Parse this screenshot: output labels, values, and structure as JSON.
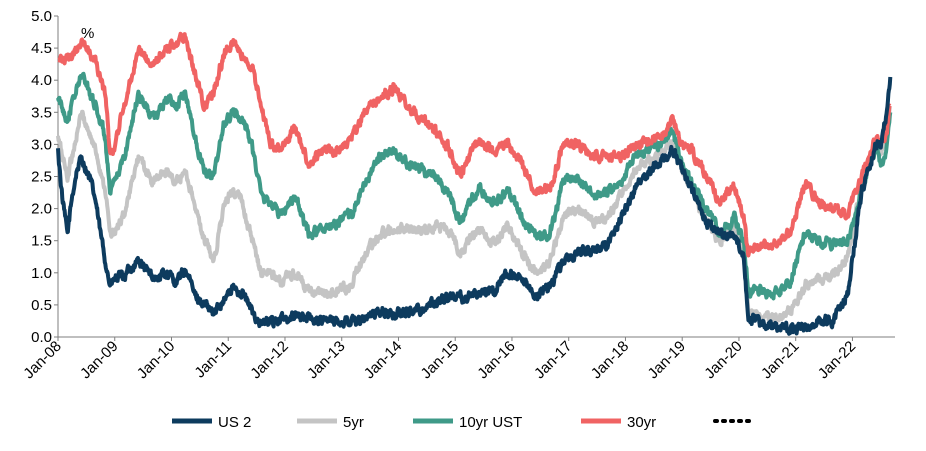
{
  "chart_data": {
    "type": "line",
    "unit_label": "%",
    "y_ticks": [
      "0.0",
      "0.5",
      "1.0",
      "1.5",
      "2.0",
      "2.5",
      "3.0",
      "3.5",
      "4.0",
      "4.5",
      "5.0"
    ],
    "ylim": [
      0,
      5
    ],
    "x_ticks": [
      "Jan-08",
      "Jan-09",
      "Jan-10",
      "Jan-11",
      "Jan-12",
      "Jan-13",
      "Jan-14",
      "Jan-15",
      "Jan-16",
      "Jan-17",
      "Jan-18",
      "Jan-19",
      "Jan-20",
      "Jan-21",
      "Jan-22"
    ],
    "xlim": [
      "2008-01",
      "2022-09"
    ],
    "grid": false,
    "legend": "bottom",
    "legend_dotted_entry": "",
    "series": [
      {
        "name": "US 2",
        "color": "#0d3b5e",
        "points": [
          [
            "2008-01",
            2.9
          ],
          [
            "2008-02",
            2.1
          ],
          [
            "2008-03",
            1.6
          ],
          [
            "2008-04",
            2.2
          ],
          [
            "2008-05",
            2.6
          ],
          [
            "2008-06",
            2.8
          ],
          [
            "2008-07",
            2.6
          ],
          [
            "2008-08",
            2.4
          ],
          [
            "2008-09",
            2.1
          ],
          [
            "2008-10",
            1.6
          ],
          [
            "2008-11",
            1.2
          ],
          [
            "2008-12",
            0.8
          ],
          [
            "2009-01",
            0.9
          ],
          [
            "2009-03",
            0.95
          ],
          [
            "2009-06",
            1.2
          ],
          [
            "2009-08",
            1.0
          ],
          [
            "2009-10",
            0.9
          ],
          [
            "2009-12",
            1.0
          ],
          [
            "2010-02",
            0.85
          ],
          [
            "2010-04",
            1.05
          ],
          [
            "2010-06",
            0.65
          ],
          [
            "2010-08",
            0.5
          ],
          [
            "2010-10",
            0.35
          ],
          [
            "2010-12",
            0.6
          ],
          [
            "2011-02",
            0.75
          ],
          [
            "2011-04",
            0.7
          ],
          [
            "2011-06",
            0.4
          ],
          [
            "2011-08",
            0.2
          ],
          [
            "2011-10",
            0.25
          ],
          [
            "2011-12",
            0.25
          ],
          [
            "2012-03",
            0.35
          ],
          [
            "2012-06",
            0.3
          ],
          [
            "2012-09",
            0.25
          ],
          [
            "2012-12",
            0.25
          ],
          [
            "2013-03",
            0.25
          ],
          [
            "2013-06",
            0.3
          ],
          [
            "2013-09",
            0.4
          ],
          [
            "2013-12",
            0.35
          ],
          [
            "2014-03",
            0.4
          ],
          [
            "2014-06",
            0.45
          ],
          [
            "2014-09",
            0.55
          ],
          [
            "2014-12",
            0.65
          ],
          [
            "2015-03",
            0.6
          ],
          [
            "2015-06",
            0.7
          ],
          [
            "2015-09",
            0.7
          ],
          [
            "2015-12",
            1.0
          ],
          [
            "2016-03",
            0.85
          ],
          [
            "2016-06",
            0.65
          ],
          [
            "2016-09",
            0.8
          ],
          [
            "2016-12",
            1.2
          ],
          [
            "2017-03",
            1.3
          ],
          [
            "2017-06",
            1.35
          ],
          [
            "2017-09",
            1.4
          ],
          [
            "2017-12",
            1.85
          ],
          [
            "2018-03",
            2.3
          ],
          [
            "2018-06",
            2.55
          ],
          [
            "2018-09",
            2.8
          ],
          [
            "2018-11",
            2.9
          ],
          [
            "2019-01",
            2.6
          ],
          [
            "2019-03",
            2.3
          ],
          [
            "2019-06",
            1.8
          ],
          [
            "2019-09",
            1.6
          ],
          [
            "2019-12",
            1.6
          ],
          [
            "2020-02",
            1.3
          ],
          [
            "2020-03",
            0.3
          ],
          [
            "2020-06",
            0.2
          ],
          [
            "2020-09",
            0.15
          ],
          [
            "2020-12",
            0.12
          ],
          [
            "2021-03",
            0.15
          ],
          [
            "2021-06",
            0.25
          ],
          [
            "2021-09",
            0.25
          ],
          [
            "2021-12",
            0.7
          ],
          [
            "2022-03",
            2.3
          ],
          [
            "2022-06",
            3.0
          ],
          [
            "2022-07",
            3.0
          ],
          [
            "2022-08",
            3.4
          ],
          [
            "2022-09",
            4.05
          ]
        ]
      },
      {
        "name": "5yr",
        "color": "#c4c4c4",
        "points": [
          [
            "2008-01",
            3.1
          ],
          [
            "2008-03",
            2.5
          ],
          [
            "2008-06",
            3.5
          ],
          [
            "2008-09",
            2.9
          ],
          [
            "2008-11",
            2.3
          ],
          [
            "2008-12",
            1.6
          ],
          [
            "2009-01",
            1.6
          ],
          [
            "2009-03",
            1.9
          ],
          [
            "2009-06",
            2.8
          ],
          [
            "2009-09",
            2.4
          ],
          [
            "2009-12",
            2.6
          ],
          [
            "2010-02",
            2.4
          ],
          [
            "2010-04",
            2.6
          ],
          [
            "2010-06",
            2.0
          ],
          [
            "2010-08",
            1.5
          ],
          [
            "2010-10",
            1.2
          ],
          [
            "2010-12",
            2.0
          ],
          [
            "2011-02",
            2.3
          ],
          [
            "2011-04",
            2.1
          ],
          [
            "2011-06",
            1.5
          ],
          [
            "2011-08",
            1.0
          ],
          [
            "2011-10",
            1.0
          ],
          [
            "2011-12",
            0.85
          ],
          [
            "2012-03",
            1.0
          ],
          [
            "2012-06",
            0.7
          ],
          [
            "2012-09",
            0.65
          ],
          [
            "2012-12",
            0.7
          ],
          [
            "2013-03",
            0.8
          ],
          [
            "2013-06",
            1.3
          ],
          [
            "2013-09",
            1.6
          ],
          [
            "2013-12",
            1.7
          ],
          [
            "2014-03",
            1.7
          ],
          [
            "2014-06",
            1.65
          ],
          [
            "2014-09",
            1.75
          ],
          [
            "2014-12",
            1.65
          ],
          [
            "2015-02",
            1.3
          ],
          [
            "2015-06",
            1.7
          ],
          [
            "2015-09",
            1.45
          ],
          [
            "2015-12",
            1.75
          ],
          [
            "2016-03",
            1.35
          ],
          [
            "2016-06",
            1.0
          ],
          [
            "2016-09",
            1.15
          ],
          [
            "2016-12",
            1.9
          ],
          [
            "2017-03",
            2.0
          ],
          [
            "2017-06",
            1.8
          ],
          [
            "2017-09",
            1.8
          ],
          [
            "2017-12",
            2.2
          ],
          [
            "2018-03",
            2.6
          ],
          [
            "2018-06",
            2.75
          ],
          [
            "2018-09",
            2.9
          ],
          [
            "2018-11",
            3.05
          ],
          [
            "2019-01",
            2.6
          ],
          [
            "2019-03",
            2.3
          ],
          [
            "2019-06",
            1.8
          ],
          [
            "2019-09",
            1.5
          ],
          [
            "2019-12",
            1.7
          ],
          [
            "2020-02",
            1.3
          ],
          [
            "2020-03",
            0.4
          ],
          [
            "2020-06",
            0.3
          ],
          [
            "2020-09",
            0.28
          ],
          [
            "2020-12",
            0.4
          ],
          [
            "2021-03",
            0.8
          ],
          [
            "2021-06",
            0.9
          ],
          [
            "2021-09",
            0.95
          ],
          [
            "2021-12",
            1.25
          ],
          [
            "2022-03",
            2.4
          ],
          [
            "2022-06",
            3.0
          ],
          [
            "2022-07",
            2.8
          ],
          [
            "2022-08",
            3.1
          ],
          [
            "2022-09",
            3.6
          ]
        ]
      },
      {
        "name": "10yr UST",
        "color": "#3f9a88",
        "points": [
          [
            "2008-01",
            3.7
          ],
          [
            "2008-03",
            3.4
          ],
          [
            "2008-06",
            4.1
          ],
          [
            "2008-09",
            3.6
          ],
          [
            "2008-11",
            3.1
          ],
          [
            "2008-12",
            2.2
          ],
          [
            "2009-01",
            2.4
          ],
          [
            "2009-03",
            2.8
          ],
          [
            "2009-06",
            3.8
          ],
          [
            "2009-09",
            3.4
          ],
          [
            "2009-12",
            3.7
          ],
          [
            "2010-02",
            3.6
          ],
          [
            "2010-04",
            3.8
          ],
          [
            "2010-06",
            3.1
          ],
          [
            "2010-08",
            2.6
          ],
          [
            "2010-10",
            2.5
          ],
          [
            "2010-12",
            3.3
          ],
          [
            "2011-02",
            3.5
          ],
          [
            "2011-04",
            3.4
          ],
          [
            "2011-06",
            3.0
          ],
          [
            "2011-08",
            2.2
          ],
          [
            "2011-10",
            2.1
          ],
          [
            "2011-12",
            1.9
          ],
          [
            "2012-03",
            2.2
          ],
          [
            "2012-06",
            1.6
          ],
          [
            "2012-09",
            1.7
          ],
          [
            "2012-12",
            1.75
          ],
          [
            "2013-03",
            1.9
          ],
          [
            "2013-06",
            2.4
          ],
          [
            "2013-09",
            2.8
          ],
          [
            "2013-12",
            2.9
          ],
          [
            "2014-03",
            2.7
          ],
          [
            "2014-06",
            2.6
          ],
          [
            "2014-09",
            2.5
          ],
          [
            "2014-12",
            2.2
          ],
          [
            "2015-02",
            1.8
          ],
          [
            "2015-06",
            2.3
          ],
          [
            "2015-09",
            2.1
          ],
          [
            "2015-12",
            2.25
          ],
          [
            "2016-03",
            1.9
          ],
          [
            "2016-06",
            1.55
          ],
          [
            "2016-09",
            1.6
          ],
          [
            "2016-12",
            2.45
          ],
          [
            "2017-03",
            2.45
          ],
          [
            "2017-06",
            2.2
          ],
          [
            "2017-09",
            2.25
          ],
          [
            "2017-12",
            2.4
          ],
          [
            "2018-03",
            2.85
          ],
          [
            "2018-06",
            2.9
          ],
          [
            "2018-09",
            3.05
          ],
          [
            "2018-11",
            3.2
          ],
          [
            "2019-01",
            2.7
          ],
          [
            "2019-03",
            2.45
          ],
          [
            "2019-06",
            2.0
          ],
          [
            "2019-09",
            1.6
          ],
          [
            "2019-12",
            1.85
          ],
          [
            "2020-02",
            1.5
          ],
          [
            "2020-03",
            0.7
          ],
          [
            "2020-06",
            0.7
          ],
          [
            "2020-09",
            0.68
          ],
          [
            "2020-12",
            0.92
          ],
          [
            "2021-03",
            1.6
          ],
          [
            "2021-06",
            1.5
          ],
          [
            "2021-09",
            1.45
          ],
          [
            "2021-12",
            1.5
          ],
          [
            "2022-03",
            2.3
          ],
          [
            "2022-06",
            3.0
          ],
          [
            "2022-07",
            2.7
          ],
          [
            "2022-08",
            2.9
          ],
          [
            "2022-09",
            3.5
          ]
        ]
      },
      {
        "name": "30yr",
        "color": "#f06363",
        "points": [
          [
            "2008-01",
            4.3
          ],
          [
            "2008-03",
            4.3
          ],
          [
            "2008-06",
            4.6
          ],
          [
            "2008-09",
            4.3
          ],
          [
            "2008-11",
            3.8
          ],
          [
            "2008-12",
            2.8
          ],
          [
            "2009-01",
            3.0
          ],
          [
            "2009-03",
            3.6
          ],
          [
            "2009-06",
            4.5
          ],
          [
            "2009-09",
            4.2
          ],
          [
            "2009-12",
            4.5
          ],
          [
            "2010-02",
            4.6
          ],
          [
            "2010-04",
            4.7
          ],
          [
            "2010-06",
            4.1
          ],
          [
            "2010-08",
            3.6
          ],
          [
            "2010-10",
            3.8
          ],
          [
            "2010-12",
            4.4
          ],
          [
            "2011-02",
            4.6
          ],
          [
            "2011-04",
            4.4
          ],
          [
            "2011-06",
            4.2
          ],
          [
            "2011-08",
            3.6
          ],
          [
            "2011-10",
            3.0
          ],
          [
            "2011-12",
            2.9
          ],
          [
            "2012-03",
            3.3
          ],
          [
            "2012-06",
            2.7
          ],
          [
            "2012-09",
            2.9
          ],
          [
            "2012-12",
            2.9
          ],
          [
            "2013-03",
            3.1
          ],
          [
            "2013-06",
            3.5
          ],
          [
            "2013-09",
            3.7
          ],
          [
            "2013-12",
            3.9
          ],
          [
            "2014-03",
            3.6
          ],
          [
            "2014-06",
            3.4
          ],
          [
            "2014-09",
            3.2
          ],
          [
            "2014-12",
            2.9
          ],
          [
            "2015-02",
            2.5
          ],
          [
            "2015-06",
            3.1
          ],
          [
            "2015-09",
            2.9
          ],
          [
            "2015-12",
            3.0
          ],
          [
            "2016-03",
            2.7
          ],
          [
            "2016-06",
            2.3
          ],
          [
            "2016-09",
            2.3
          ],
          [
            "2016-12",
            3.05
          ],
          [
            "2017-03",
            3.0
          ],
          [
            "2017-06",
            2.8
          ],
          [
            "2017-09",
            2.8
          ],
          [
            "2017-12",
            2.8
          ],
          [
            "2018-03",
            3.0
          ],
          [
            "2018-06",
            3.0
          ],
          [
            "2018-09",
            3.2
          ],
          [
            "2018-11",
            3.4
          ],
          [
            "2019-01",
            3.0
          ],
          [
            "2019-03",
            2.9
          ],
          [
            "2019-06",
            2.5
          ],
          [
            "2019-09",
            2.1
          ],
          [
            "2019-12",
            2.35
          ],
          [
            "2020-02",
            1.9
          ],
          [
            "2020-03",
            1.3
          ],
          [
            "2020-06",
            1.4
          ],
          [
            "2020-09",
            1.45
          ],
          [
            "2020-12",
            1.65
          ],
          [
            "2021-03",
            2.4
          ],
          [
            "2021-06",
            2.1
          ],
          [
            "2021-09",
            2.0
          ],
          [
            "2021-12",
            1.9
          ],
          [
            "2022-03",
            2.5
          ],
          [
            "2022-06",
            3.1
          ],
          [
            "2022-07",
            3.0
          ],
          [
            "2022-08",
            3.1
          ],
          [
            "2022-09",
            3.6
          ]
        ]
      }
    ]
  }
}
